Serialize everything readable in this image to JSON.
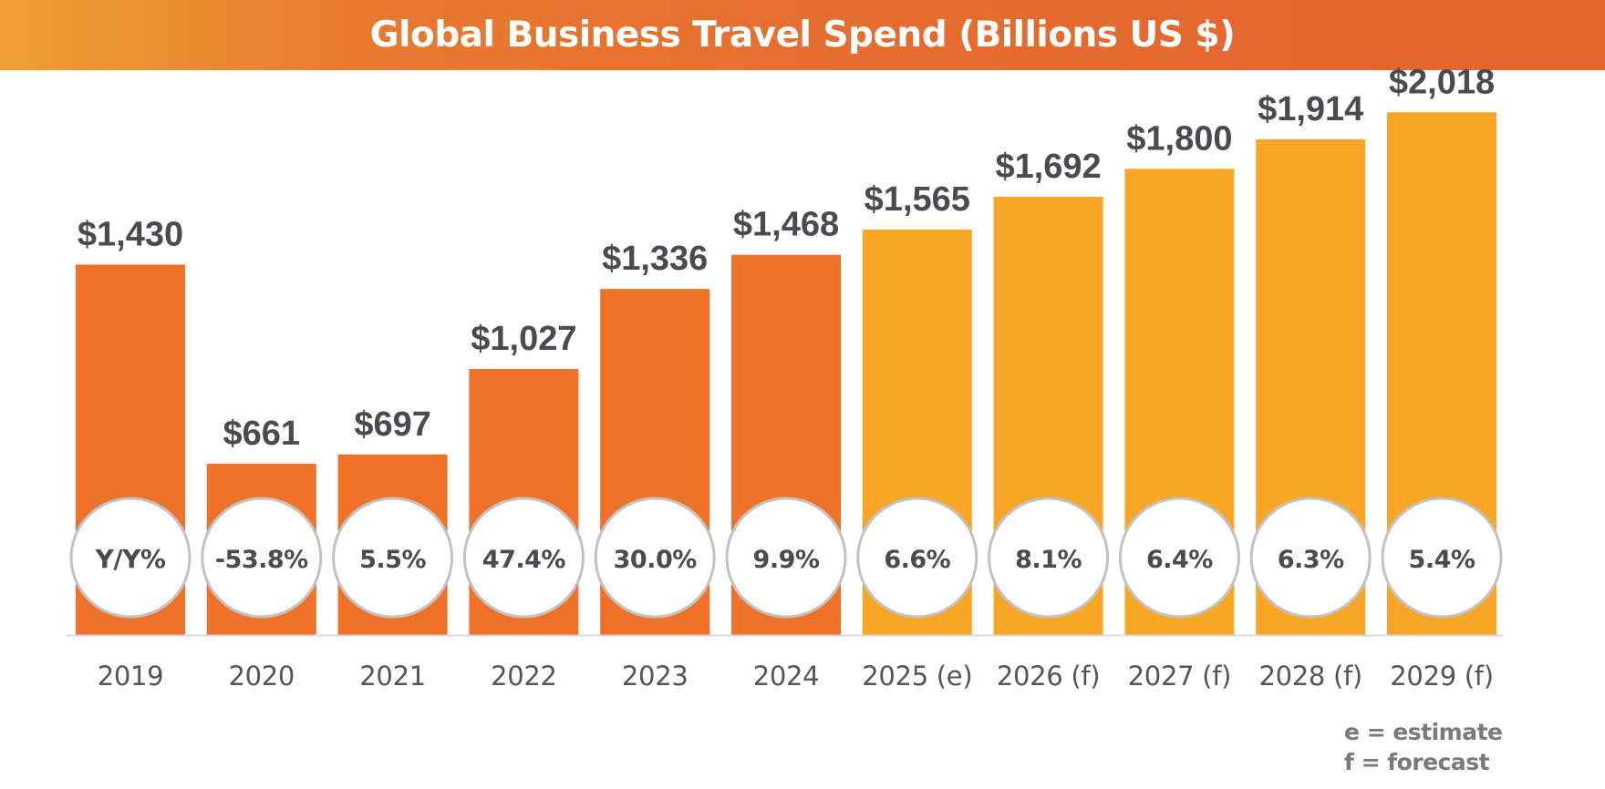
{
  "chart_data": {
    "type": "bar",
    "title": "Global Business Travel Spend (Billions US $)",
    "xlabel": "",
    "ylabel": "",
    "ylim": [
      0,
      2100
    ],
    "grid": false,
    "categories": [
      "2019",
      "2020",
      "2021",
      "2022",
      "2023",
      "2024",
      "2025 (e)",
      "2026 (f)",
      "2027 (f)",
      "2028 (f)",
      "2029 (f)"
    ],
    "values": [
      1430,
      661,
      697,
      1027,
      1336,
      1468,
      1565,
      1692,
      1800,
      1914,
      2018
    ],
    "value_labels": [
      "$1,430",
      "$661",
      "$697",
      "$1,027",
      "$1,336",
      "$1,468",
      "$1,565",
      "$1,692",
      "$1,800",
      "$1,914",
      "$2,018"
    ],
    "bubble_labels": [
      "Y/Y%",
      "-53.8%",
      "5.5%",
      "47.4%",
      "30.0%",
      "9.9%",
      "6.6%",
      "8.1%",
      "6.4%",
      "6.3%",
      "5.4%"
    ],
    "bar_types": [
      "actual",
      "actual",
      "actual",
      "actual",
      "actual",
      "actual",
      "projected",
      "projected",
      "projected",
      "projected",
      "projected"
    ],
    "legend": {
      "estimate": "e = estimate",
      "forecast": "f = forecast"
    }
  },
  "colors": {
    "actual": "#f07228",
    "projected": "#f9a626",
    "value_label": "#4a4a50",
    "category_label": "#555555",
    "bubble_text": "#4a4a50",
    "bubble_border": "#c2c2c2",
    "baseline": "#d9d9d9"
  }
}
